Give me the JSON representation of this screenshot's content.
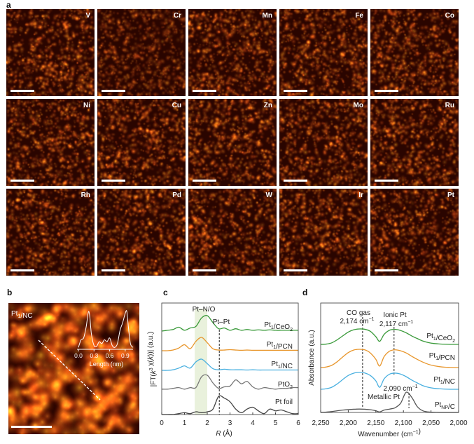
{
  "panel_labels": {
    "a": "a",
    "b": "b",
    "c": "c",
    "d": "d"
  },
  "panel_a": {
    "tiles": [
      "V",
      "Cr",
      "Mn",
      "Fe",
      "Co",
      "Ni",
      "Cu",
      "Zn",
      "Mo",
      "Ru",
      "Rh",
      "Pd",
      "W",
      "Ir",
      "Pt"
    ],
    "colors": {
      "dark": "#2a0500",
      "mid": "#b5360a",
      "bright": "#ffd27a"
    }
  },
  "panel_b": {
    "label_parts": [
      [
        "Pt",
        ""
      ],
      [
        "1",
        "sub"
      ],
      [
        "/NC",
        ""
      ]
    ],
    "inset_xlabel": "Length (nm)",
    "inset_ticks": [
      "0.0",
      "0.3",
      "0.6",
      "0.9"
    ]
  },
  "chart_data": [
    {
      "type": "line",
      "panel": "b-inset",
      "xlabel": "Length (nm)",
      "xlim": [
        0.0,
        1.05
      ],
      "x": [
        0,
        0.05,
        0.1,
        0.15,
        0.18,
        0.2,
        0.22,
        0.25,
        0.3,
        0.35,
        0.4,
        0.45,
        0.5,
        0.55,
        0.6,
        0.65,
        0.7,
        0.75,
        0.8,
        0.85,
        0.9,
        0.93,
        0.96,
        1.0,
        1.05
      ],
      "values": [
        0.05,
        0.25,
        0.3,
        0.6,
        0.9,
        1.0,
        0.85,
        0.4,
        0.1,
        0.08,
        0.2,
        0.15,
        0.25,
        0.2,
        0.3,
        0.1,
        0.05,
        0.15,
        0.5,
        0.7,
        0.95,
        1.0,
        0.6,
        0.15,
        0.05
      ]
    },
    {
      "type": "line",
      "panel": "c",
      "xlabel_parts": [
        [
          "R",
          "i"
        ],
        [
          " (Å)",
          ""
        ]
      ],
      "ylabel_parts": [
        [
          "|FT(",
          ""
        ],
        [
          "k",
          "i"
        ],
        [
          "3",
          "sup"
        ],
        [
          " χ(",
          ""
        ],
        [
          "k",
          "i"
        ],
        [
          "))| (a.u.)",
          ""
        ]
      ],
      "xlim": [
        0,
        6
      ],
      "xticks": [
        "0",
        "1",
        "2",
        "3",
        "4",
        "5",
        "6"
      ],
      "shaded_region": [
        1.45,
        2.0
      ],
      "dashed_line_x": 2.53,
      "annotations": [
        "Pt–N/O",
        "Pt–Pt"
      ],
      "x": [
        0,
        0.25,
        0.5,
        0.75,
        1,
        1.25,
        1.5,
        1.75,
        2,
        2.25,
        2.5,
        2.75,
        3,
        3.25,
        3.5,
        3.75,
        4,
        4.25,
        4.5,
        4.75,
        5,
        5.25,
        5.5,
        5.75,
        6
      ],
      "series": [
        {
          "name_parts": [
            [
              "Pt",
              ""
            ],
            [
              "1",
              "sub"
            ],
            [
              "/CeO",
              ""
            ],
            [
              "2",
              "sub"
            ]
          ],
          "color": "#3a9a3a",
          "values": [
            0,
            0.05,
            0.1,
            0.25,
            0.05,
            0.2,
            0.3,
            0.85,
            1.0,
            0.55,
            0.15,
            0.2,
            0.05,
            0.15,
            0.05,
            0.1,
            0.05,
            0.08,
            0.05,
            0.08,
            0.05,
            0.05,
            0.05,
            0.05,
            0.05
          ]
        },
        {
          "name_parts": [
            [
              "Pt",
              ""
            ],
            [
              "1",
              "sub"
            ],
            [
              "/PCN",
              ""
            ]
          ],
          "color": "#e8962c",
          "values": [
            0,
            0,
            0.05,
            0.2,
            0.45,
            0.15,
            0.7,
            1.0,
            0.6,
            0.15,
            0.05,
            0.05,
            0.08,
            0.05,
            0.03,
            0.05,
            0.03,
            0.03,
            0.03,
            0.03,
            0.03,
            0.03,
            0.03,
            0.03,
            0.03
          ]
        },
        {
          "name_parts": [
            [
              "Pt",
              ""
            ],
            [
              "1",
              "sub"
            ],
            [
              "/NC",
              ""
            ]
          ],
          "color": "#4ab0e0",
          "values": [
            0,
            0,
            0.05,
            0.2,
            0.4,
            0.2,
            0.75,
            1.0,
            0.6,
            0.15,
            0.05,
            0.1,
            0.05,
            0.05,
            0.05,
            0.03,
            0.05,
            0.03,
            0.03,
            0.03,
            0.03,
            0.03,
            0.03,
            0.03,
            0.03
          ]
        },
        {
          "name_parts": [
            [
              "PtO",
              ""
            ],
            [
              "2",
              "sub"
            ]
          ],
          "color": "#777777",
          "values": [
            0.1,
            0.1,
            0.15,
            0.2,
            0.1,
            0.2,
            0.2,
            0.9,
            1.0,
            0.5,
            0.15,
            0.25,
            0.3,
            0.7,
            0.45,
            0.6,
            0.25,
            0.1,
            0.2,
            0.15,
            0.1,
            0.15,
            0.15,
            0.2,
            0.2
          ]
        },
        {
          "name_parts": [
            [
              "Pt foil",
              ""
            ]
          ],
          "color": "#444444",
          "values": [
            0,
            0,
            0,
            0.05,
            0.1,
            0.05,
            0.15,
            0.1,
            0.15,
            0.3,
            1.0,
            0.9,
            0.7,
            0.3,
            0.1,
            0.3,
            0.4,
            0.2,
            0.05,
            0.3,
            0.2,
            0.25,
            0.15,
            0.05,
            0.05
          ]
        }
      ]
    },
    {
      "type": "line",
      "panel": "d",
      "xlabel_parts": [
        [
          "Wavenumber (cm",
          ""
        ],
        [
          "−1",
          "sup"
        ],
        [
          ")",
          ""
        ]
      ],
      "ylabel": "Absorbance (a.u.)",
      "xlim": [
        2250,
        2000
      ],
      "xticks": [
        "2,250",
        "2,200",
        "2,150",
        "2,100",
        "2,050",
        "2,000"
      ],
      "dashed_lines_x": [
        2174,
        2117,
        2090
      ],
      "annotations": {
        "co_gas": "CO gas",
        "co_gas_value": [
          [
            "2,174 cm",
            ""
          ],
          [
            "−1",
            "sup"
          ]
        ],
        "ionic": "Ionic Pt",
        "ionic_value": [
          [
            "2,117 cm",
            ""
          ],
          [
            "−1",
            "sup"
          ]
        ],
        "metallic_value": [
          [
            "2,090 cm",
            ""
          ],
          [
            "−1",
            "sup"
          ]
        ],
        "metallic": "Metallic Pt"
      },
      "x": [
        2250,
        2240,
        2230,
        2220,
        2210,
        2200,
        2190,
        2180,
        2170,
        2160,
        2150,
        2143,
        2135,
        2125,
        2115,
        2105,
        2095,
        2085,
        2075,
        2065,
        2055,
        2045,
        2035,
        2025,
        2015,
        2000
      ],
      "series": [
        {
          "name_parts": [
            [
              "Pt",
              ""
            ],
            [
              "1",
              "sub"
            ],
            [
              "/CeO",
              ""
            ],
            [
              "2",
              "sub"
            ]
          ],
          "color": "#3a9a3a",
          "values": [
            0,
            0.02,
            0.1,
            0.3,
            0.55,
            0.8,
            0.95,
            1.0,
            0.98,
            0.85,
            0.5,
            0.2,
            0.65,
            0.92,
            0.97,
            0.9,
            0.75,
            0.55,
            0.38,
            0.22,
            0.12,
            0.06,
            0.03,
            0.01,
            0,
            0
          ]
        },
        {
          "name_parts": [
            [
              "Pt",
              ""
            ],
            [
              "1",
              "sub"
            ],
            [
              "/PCN",
              ""
            ]
          ],
          "color": "#e8962c",
          "values": [
            0,
            0.03,
            0.12,
            0.32,
            0.58,
            0.82,
            0.96,
            1.0,
            0.97,
            0.8,
            0.45,
            0.08,
            0.6,
            0.9,
            0.97,
            0.92,
            0.8,
            0.62,
            0.45,
            0.3,
            0.18,
            0.1,
            0.05,
            0.02,
            0.01,
            0
          ]
        },
        {
          "name_parts": [
            [
              "Pt",
              ""
            ],
            [
              "1",
              "sub"
            ],
            [
              "/NC",
              ""
            ]
          ],
          "color": "#4ab0e0",
          "values": [
            0,
            0.03,
            0.12,
            0.32,
            0.58,
            0.82,
            0.96,
            1.0,
            0.97,
            0.82,
            0.5,
            0.12,
            0.62,
            0.9,
            0.96,
            0.9,
            0.75,
            0.55,
            0.38,
            0.22,
            0.12,
            0.06,
            0.03,
            0.01,
            0,
            0
          ]
        },
        {
          "name_parts": [
            [
              "Pt",
              ""
            ],
            [
              "NP",
              "sub"
            ],
            [
              "/C",
              ""
            ]
          ],
          "color": "#555555",
          "values": [
            0,
            0.02,
            0.05,
            0.1,
            0.14,
            0.17,
            0.19,
            0.2,
            0.19,
            0.16,
            0.1,
            0.03,
            0.14,
            0.2,
            0.28,
            0.55,
            1.2,
            0.9,
            0.35,
            0.1,
            0.03,
            0.01,
            0,
            0,
            0,
            0
          ]
        }
      ]
    }
  ]
}
